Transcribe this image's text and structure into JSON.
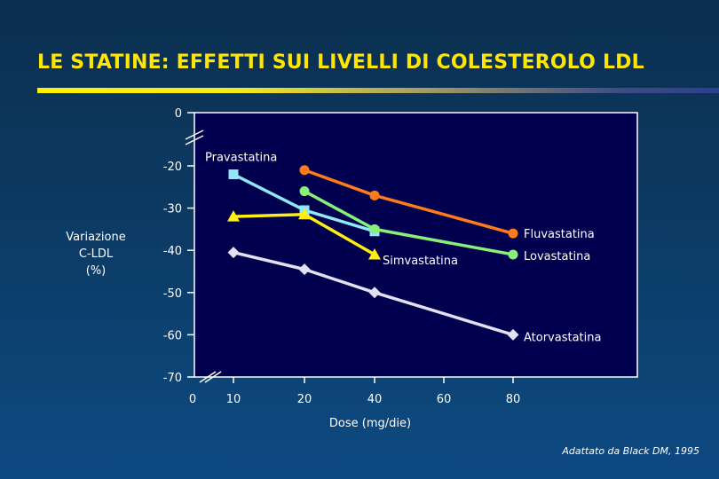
{
  "title": "LE STATINE: EFFETTI SUI LIVELLI DI COLESTEROLO LDL",
  "source": "Adattato da Black DM, 1995",
  "colors": {
    "title": "#ffe600",
    "plot_background": "#00004f",
    "Fluvastatina": "#ff7a1a",
    "Lovastatina": "#88f07a",
    "Pravastatina": "#8fe8f8",
    "Simvastatina": "#ffee10",
    "Atorvastatina": "#e4e0f4"
  },
  "chart_data": {
    "type": "line",
    "xlabel": "Dose (mg/die)",
    "ylabel_lines": [
      "Variazione",
      "C-LDL",
      "(%)"
    ],
    "x_ticks": [
      "0",
      "10",
      "20",
      "40",
      "60",
      "80"
    ],
    "y_ticks": [
      0,
      -20,
      -30,
      -40,
      -50,
      -60,
      -70
    ],
    "ylim": [
      -70,
      0
    ],
    "axis_breaks": true,
    "grid": false,
    "series": [
      {
        "name": "Pravastatina",
        "marker": "square",
        "x": [
          10,
          20,
          40
        ],
        "y": [
          -22,
          -30.5,
          -35.5
        ]
      },
      {
        "name": "Fluvastatina",
        "marker": "circle",
        "x": [
          20,
          40,
          80
        ],
        "y": [
          -21,
          -27,
          -36
        ]
      },
      {
        "name": "Lovastatina",
        "marker": "circle",
        "x": [
          20,
          40,
          80
        ],
        "y": [
          -26,
          -35,
          -41
        ]
      },
      {
        "name": "Simvastatina",
        "marker": "triangle",
        "x": [
          10,
          20,
          40
        ],
        "y": [
          -32,
          -31.5,
          -41
        ]
      },
      {
        "name": "Atorvastatina",
        "marker": "diamond",
        "x": [
          10,
          20,
          40,
          80
        ],
        "y": [
          -40.5,
          -44.5,
          -50,
          -60
        ]
      }
    ]
  }
}
